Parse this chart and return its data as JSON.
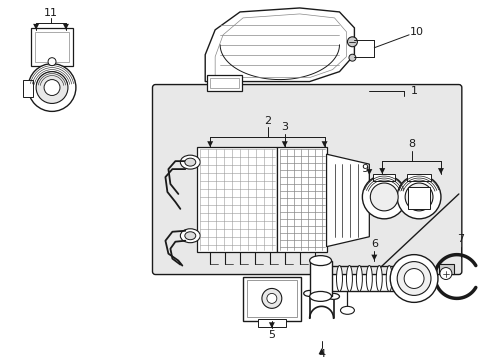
{
  "figsize": [
    4.89,
    3.6
  ],
  "dpi": 100,
  "bg_color": "#ffffff",
  "lc": "#1a1a1a",
  "gray_box": "#e0e0e0",
  "gray_hatch": "#aaaaaa"
}
